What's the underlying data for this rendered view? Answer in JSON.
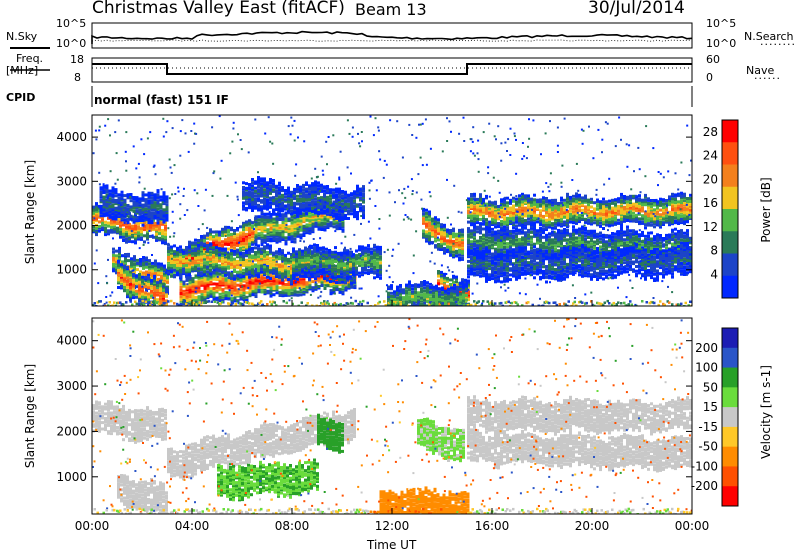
{
  "header": {
    "radar": "Christmas Valley East (fitACF)",
    "beam": "Beam 13",
    "date": "30/Jul/2014"
  },
  "status_panels": {
    "nsky_label": "N.Sky",
    "nsky_ticks": [
      "10^5",
      "10^0"
    ],
    "nsearch_label": "N.Search",
    "nsearch_ticks": [
      "10^5",
      "10^0"
    ],
    "freq_label_line1": "Freq.",
    "freq_label_line2": "[MHz]",
    "freq_ticks": [
      "18",
      "8"
    ],
    "nave_label": "Nave",
    "nave_ticks": [
      "60",
      "0"
    ],
    "cpid_label": "CPID",
    "cpid_text": "normal (fast) 151 IF"
  },
  "chart_data": [
    {
      "type": "heatmap",
      "name": "power",
      "ylabel": "Slant Range [km]",
      "yticks": [
        1000,
        2000,
        3000,
        4000
      ],
      "ylim": [
        180,
        4500
      ],
      "colorbar": {
        "label": "Power [dB]",
        "ticks": [
          4,
          8,
          12,
          16,
          20,
          24,
          28
        ],
        "range": [
          0,
          30
        ],
        "colors": [
          "#0028ff",
          "#1c44c8",
          "#2a7a58",
          "#52b848",
          "#f2c420",
          "#f4801c",
          "#ff5010",
          "#ff0000"
        ]
      },
      "bands": [
        {
          "t0": 0.0,
          "t1": 3.0,
          "r0": 2150,
          "r1": 1900,
          "p": 24
        },
        {
          "t0": 0.3,
          "t1": 3.0,
          "r0": 2500,
          "r1": 2350,
          "p": 8
        },
        {
          "t0": 0.8,
          "t1": 3.0,
          "r0": 1200,
          "r1": 700,
          "p": 20
        },
        {
          "t0": 1.0,
          "t1": 3.0,
          "r0": 900,
          "r1": 250,
          "p": 26
        },
        {
          "t0": 3.0,
          "t1": 6.5,
          "r0": 1150,
          "r1": 1850,
          "p": 28
        },
        {
          "t0": 6.5,
          "t1": 10.0,
          "r0": 1850,
          "r1": 2300,
          "p": 18
        },
        {
          "t0": 3.5,
          "t1": 10.5,
          "r0": 550,
          "r1": 900,
          "p": 28
        },
        {
          "t0": 3.0,
          "t1": 10.5,
          "r0": 1250,
          "r1": 1050,
          "p": 20
        },
        {
          "t0": 6.0,
          "t1": 10.8,
          "r0": 2700,
          "r1": 2500,
          "p": 8
        },
        {
          "t0": 8.0,
          "t1": 11.5,
          "r0": 1200,
          "r1": 1150,
          "p": 14
        },
        {
          "t0": 13.2,
          "t1": 14.8,
          "r0": 2000,
          "r1": 1550,
          "p": 24
        },
        {
          "t0": 13.8,
          "t1": 15.0,
          "r0": 700,
          "r1": 400,
          "p": 28
        },
        {
          "t0": 11.8,
          "t1": 15.0,
          "r0": 350,
          "r1": 350,
          "p": 14
        },
        {
          "t0": 15.0,
          "t1": 24.0,
          "r0": 2300,
          "r1": 2350,
          "p": 22
        },
        {
          "t0": 15.0,
          "t1": 24.0,
          "r0": 1650,
          "r1": 1500,
          "p": 12
        },
        {
          "t0": 15.0,
          "t1": 24.0,
          "r0": 1100,
          "r1": 1200,
          "p": 8
        }
      ]
    },
    {
      "type": "heatmap",
      "name": "velocity",
      "ylabel": "Slant Range [km]",
      "xlabel": "Time UT",
      "xticks": [
        "00:00",
        "04:00",
        "08:00",
        "12:00",
        "16:00",
        "20:00",
        "00:00"
      ],
      "xlim": [
        0,
        24
      ],
      "yticks": [
        1000,
        2000,
        3000,
        4000
      ],
      "ylim": [
        180,
        4500
      ],
      "colorbar": {
        "label": "Velocity [m s-1]",
        "ticks": [
          200,
          100,
          50,
          15,
          -15,
          -50,
          -100,
          -200
        ],
        "colors": [
          "#1c1cb4",
          "#2a55c8",
          "#28a028",
          "#6adc3c",
          "#c8c8c8",
          "#ffc828",
          "#ff8c00",
          "#ff5000",
          "#ff0000"
        ]
      },
      "bands": [
        {
          "t0": 0.0,
          "t1": 3.0,
          "r0": 2300,
          "r1": 2100,
          "v": 0
        },
        {
          "t0": 3.0,
          "t1": 10.5,
          "r0": 1300,
          "r1": 2200,
          "v": 0
        },
        {
          "t0": 1.0,
          "t1": 3.0,
          "r0": 800,
          "r1": 400,
          "v": 0
        },
        {
          "t0": 5.0,
          "t1": 9.0,
          "r0": 900,
          "r1": 1000,
          "v": 30
        },
        {
          "t0": 9.0,
          "t1": 10.0,
          "r0": 2000,
          "r1": 1900,
          "v": 60
        },
        {
          "t0": 15.0,
          "t1": 24.0,
          "r0": 2350,
          "r1": 2350,
          "v": 0
        },
        {
          "t0": 15.0,
          "t1": 24.0,
          "r0": 1650,
          "r1": 1500,
          "v": 0
        },
        {
          "t0": 11.5,
          "t1": 15.0,
          "r0": 400,
          "r1": 350,
          "v": -50
        },
        {
          "t0": 13.0,
          "t1": 14.8,
          "r0": 1950,
          "r1": 1700,
          "v": 20
        }
      ]
    }
  ]
}
